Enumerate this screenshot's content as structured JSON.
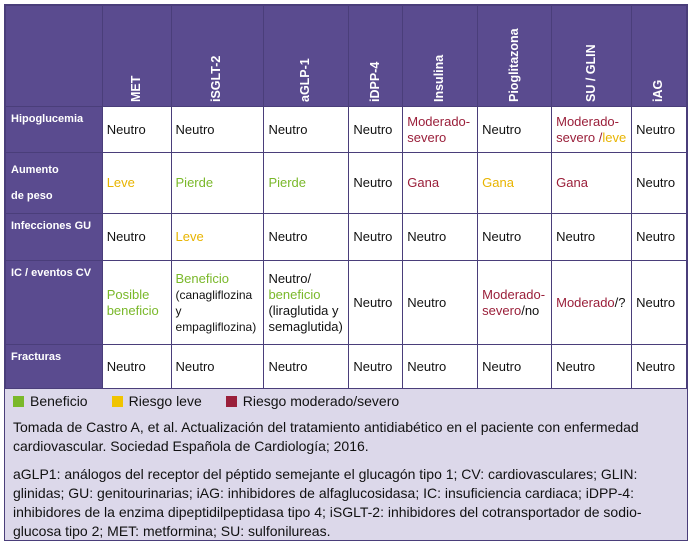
{
  "columns": [
    "MET",
    "iSGLT-2",
    "aGLP-1",
    "iDPP-4",
    "Insulina",
    "Pioglitazona",
    "SU / GLIN",
    "iAG"
  ],
  "colors": {
    "benefit": "#7ab82a",
    "mild": "#e8b400",
    "severe": "#9a1f3a",
    "header": "#5a4b8f",
    "background": "#dcd8ea"
  },
  "rows": [
    {
      "label_lines": [
        "Hipoglucemia"
      ],
      "cells": [
        [
          {
            "t": "Neutro",
            "c": ""
          }
        ],
        [
          {
            "t": "Neutro",
            "c": ""
          }
        ],
        [
          {
            "t": "Neutro",
            "c": ""
          }
        ],
        [
          {
            "t": "Neutro",
            "c": ""
          }
        ],
        [
          {
            "t": "Moderado-severo",
            "c": "red"
          }
        ],
        [
          {
            "t": "Neutro",
            "c": ""
          }
        ],
        [
          {
            "t": "Moderado-severo /",
            "c": "red"
          },
          {
            "t": "leve",
            "c": "yellow"
          }
        ],
        [
          {
            "t": "Neutro",
            "c": ""
          }
        ]
      ]
    },
    {
      "label_lines": [
        "Aumento",
        "de peso"
      ],
      "cells": [
        [
          {
            "t": "Leve",
            "c": "yellow"
          }
        ],
        [
          {
            "t": "Pierde",
            "c": "green"
          }
        ],
        [
          {
            "t": "Pierde",
            "c": "green"
          }
        ],
        [
          {
            "t": "Neutro",
            "c": ""
          }
        ],
        [
          {
            "t": "Gana",
            "c": "red"
          }
        ],
        [
          {
            "t": "Gana",
            "c": "yellow"
          }
        ],
        [
          {
            "t": "Gana",
            "c": "red"
          }
        ],
        [
          {
            "t": "Neutro",
            "c": ""
          }
        ]
      ]
    },
    {
      "label_lines": [
        "Infecciones GU"
      ],
      "cells": [
        [
          {
            "t": "Neutro",
            "c": ""
          }
        ],
        [
          {
            "t": "Leve",
            "c": "yellow"
          }
        ],
        [
          {
            "t": "Neutro",
            "c": ""
          }
        ],
        [
          {
            "t": "Neutro",
            "c": ""
          }
        ],
        [
          {
            "t": "Neutro",
            "c": ""
          }
        ],
        [
          {
            "t": "Neutro",
            "c": ""
          }
        ],
        [
          {
            "t": "Neutro",
            "c": ""
          }
        ],
        [
          {
            "t": "Neutro",
            "c": ""
          }
        ]
      ]
    },
    {
      "label_lines": [
        "IC / eventos CV"
      ],
      "cells": [
        [
          {
            "t": "Posible beneficio",
            "c": "green"
          }
        ],
        [
          {
            "t": "Beneficio",
            "c": "green",
            "br": true
          },
          {
            "t": "(canagliflozina y empagliflozina)",
            "c": "",
            "s": "small"
          }
        ],
        [
          {
            "t": "Neutro/",
            "c": "",
            "br": true
          },
          {
            "t": "beneficio",
            "c": "green",
            "br": true
          },
          {
            "t": "(liraglutida y semaglutida)",
            "c": ""
          }
        ],
        [
          {
            "t": "Neutro",
            "c": ""
          }
        ],
        [
          {
            "t": "Neutro",
            "c": ""
          }
        ],
        [
          {
            "t": "Moderado-severo",
            "c": "red"
          },
          {
            "t": "/no",
            "c": ""
          }
        ],
        [
          {
            "t": "Moderado",
            "c": "red"
          },
          {
            "t": "/?",
            "c": ""
          }
        ],
        [
          {
            "t": "Neutro",
            "c": ""
          }
        ]
      ]
    },
    {
      "label_lines": [
        "Fracturas"
      ],
      "cells": [
        [
          {
            "t": "Neutro",
            "c": ""
          }
        ],
        [
          {
            "t": "Neutro",
            "c": ""
          }
        ],
        [
          {
            "t": "Neutro",
            "c": ""
          }
        ],
        [
          {
            "t": "Neutro",
            "c": ""
          }
        ],
        [
          {
            "t": "Neutro",
            "c": ""
          }
        ],
        [
          {
            "t": "Neutro",
            "c": ""
          }
        ],
        [
          {
            "t": "Neutro",
            "c": ""
          }
        ],
        [
          {
            "t": "Neutro",
            "c": ""
          }
        ]
      ]
    }
  ],
  "legend": {
    "benefit": "Beneficio",
    "mild": "Riesgo leve",
    "severe": "Riesgo moderado/severo"
  },
  "source": "Tomada de Castro A, et al. Actualización del tratamiento antidiabético en el paciente con enfermedad cardiovascular. Sociedad Española de Cardiología; 2016.",
  "abbreviations": "aGLP1: análogos del receptor del péptido semejante el glucagón tipo 1; CV: cardiovasculares; GLIN: glinidas; GU: genitourinarias; iAG: inhibidores de alfaglucosidasa; IC: insuficiencia cardiaca; iDPP-4: inhibidores de la enzima dipeptidilpeptidasa tipo 4; iSGLT-2: inhibidores del cotransportador de sodio-glucosa tipo 2; MET: metformina; SU: sulfonilureas."
}
